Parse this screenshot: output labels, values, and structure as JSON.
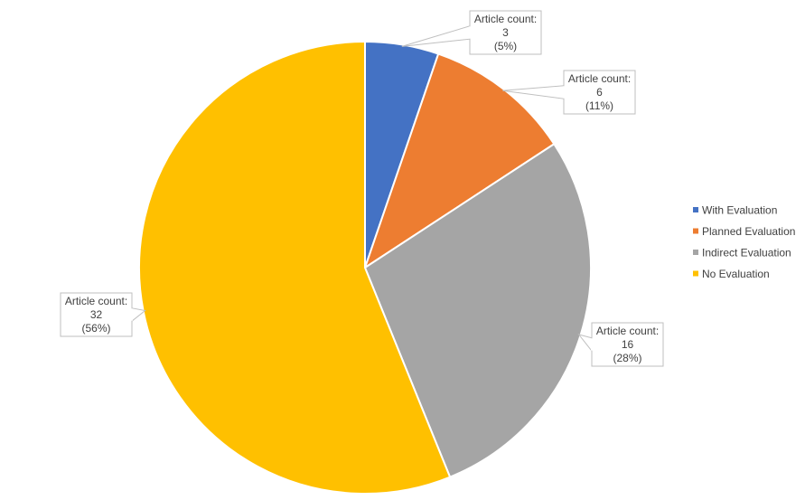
{
  "chart_data": {
    "type": "pie",
    "title": "",
    "label_prefix": "Article count:",
    "categories": [
      "With Evaluation",
      "Planned Evaluation",
      "Indirect Evaluation",
      "No Evaluation"
    ],
    "values": [
      3,
      6,
      16,
      32
    ],
    "percent_labels": [
      "(5%)",
      "(11%)",
      "(28%)",
      "(56%)"
    ],
    "colors": [
      "#4472C4",
      "#ED7D31",
      "#A5A5A5",
      "#FFC000"
    ],
    "start_angle": "top, clockwise",
    "legend_placement": "right"
  }
}
